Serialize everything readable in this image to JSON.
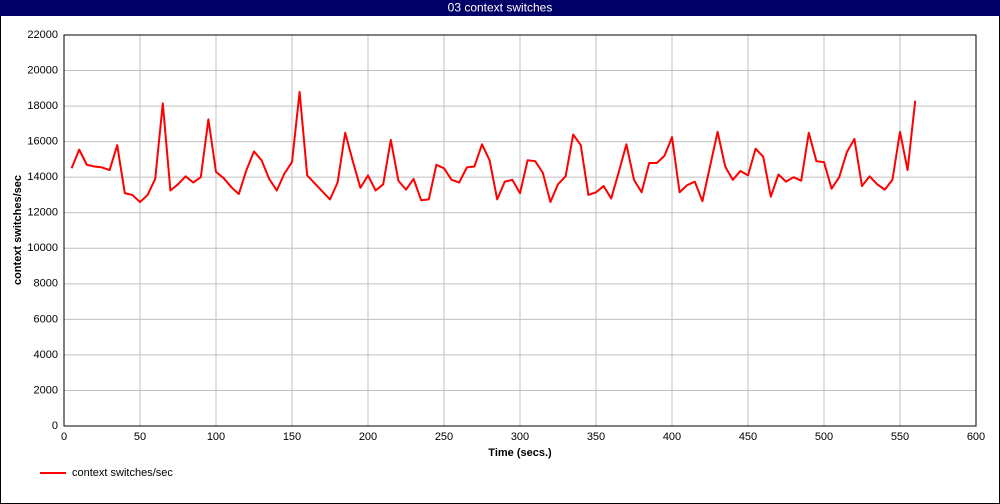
{
  "chart_data": {
    "type": "line",
    "title": "03 context switches",
    "x_label": "Time (secs.)",
    "y_label": "context switches/sec",
    "x": [
      5,
      10,
      15,
      20,
      25,
      30,
      35,
      40,
      45,
      50,
      55,
      60,
      65,
      70,
      75,
      80,
      85,
      90,
      95,
      100,
      105,
      110,
      115,
      120,
      125,
      130,
      135,
      140,
      145,
      150,
      155,
      160,
      165,
      170,
      175,
      180,
      185,
      190,
      195,
      200,
      205,
      210,
      215,
      220,
      225,
      230,
      235,
      240,
      245,
      250,
      255,
      260,
      265,
      270,
      275,
      280,
      285,
      290,
      295,
      300,
      305,
      310,
      315,
      320,
      325,
      330,
      335,
      340,
      345,
      350,
      355,
      360,
      365,
      370,
      375,
      380,
      385,
      390,
      395,
      400,
      405,
      410,
      415,
      420,
      425,
      430,
      435,
      440,
      445,
      450,
      455,
      460,
      465,
      470,
      475,
      480,
      485,
      490,
      495,
      500,
      505,
      510,
      515,
      520,
      525,
      530,
      535,
      540,
      545,
      550,
      555,
      560
    ],
    "series": [
      {
        "name": "context switches/sec",
        "color": "#ff0000",
        "values": [
          14500,
          15550,
          14700,
          14600,
          14550,
          14400,
          15800,
          13100,
          13000,
          12600,
          13000,
          13900,
          18150,
          13250,
          13600,
          14050,
          13700,
          14000,
          17250,
          14300,
          13950,
          13450,
          13050,
          14400,
          15450,
          14950,
          13900,
          13250,
          14200,
          14850,
          18800,
          14100,
          13650,
          13200,
          12750,
          13700,
          16500,
          14900,
          13400,
          14100,
          13250,
          13600,
          16100,
          13800,
          13300,
          13900,
          12700,
          12750,
          14700,
          14500,
          13850,
          13700,
          14550,
          14600,
          15850,
          14950,
          12750,
          13750,
          13850,
          13100,
          14950,
          14900,
          14250,
          12600,
          13600,
          14050,
          16400,
          15800,
          13000,
          13150,
          13500,
          12800,
          14300,
          15850,
          13850,
          13150,
          14800,
          14800,
          15200,
          16250,
          13150,
          13550,
          13750,
          12650,
          14600,
          16550,
          14600,
          13850,
          14350,
          14100,
          15600,
          15150,
          12900,
          14150,
          13750,
          14000,
          13800,
          16500,
          14900,
          14850,
          13350,
          14000,
          15400,
          16150,
          13500,
          14050,
          13600,
          13300,
          13850,
          16550,
          14400,
          18300
        ]
      }
    ],
    "xlim": [
      0,
      600
    ],
    "xticks": [
      0,
      50,
      100,
      150,
      200,
      250,
      300,
      350,
      400,
      450,
      500,
      550,
      600
    ],
    "ylim": [
      0,
      22000
    ],
    "yticks": [
      0,
      2000,
      4000,
      6000,
      8000,
      10000,
      12000,
      14000,
      16000,
      18000,
      20000,
      22000
    ],
    "grid": true
  }
}
